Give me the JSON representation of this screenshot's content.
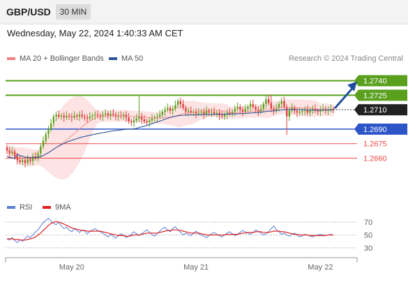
{
  "header": {
    "symbol": "GBP/USD",
    "timeframe": "30 MIN"
  },
  "timestamp": "Wednesday, May 22, 2024 1:40:33 AM CET",
  "legend": {
    "ma20": {
      "label": "MA 20 + Bollinger Bands",
      "color": "#f08080"
    },
    "ma50": {
      "label": "MA 50",
      "color": "#2b5797"
    },
    "rsi": {
      "label": "RSI",
      "color": "#5b7fd6"
    },
    "ma9": {
      "label": "9MA",
      "color": "#e02020"
    }
  },
  "credit": "Research © 2024 Trading Central",
  "chart_data": [
    {
      "type": "candlestick",
      "ylim": [
        1.262,
        1.2757
      ],
      "current_price": "1.2710",
      "levels": [
        {
          "label": "1.2740",
          "value": 1.274,
          "kind": "resistance",
          "color": "#5aa01e"
        },
        {
          "label": "1.2725",
          "value": 1.2725,
          "kind": "resistance",
          "color": "#5aa01e"
        },
        {
          "label": "1.2690",
          "value": 1.269,
          "kind": "pivot",
          "color": "#2d55c8"
        },
        {
          "label": "1.2675",
          "value": 1.2675,
          "kind": "support",
          "color": "#f04848"
        },
        {
          "label": "1.2660",
          "value": 1.266,
          "kind": "support",
          "color": "#f04848"
        }
      ],
      "forecast": "up",
      "bull_color": "#5aa01e",
      "bear_color": "#e23a3a",
      "x_labels": [
        "May 20",
        "May 21",
        "May 22"
      ],
      "x_label_index": [
        25,
        73,
        121
      ],
      "closes": [
        1.2668,
        1.2665,
        1.2667,
        1.2662,
        1.2658,
        1.2656,
        1.2658,
        1.2655,
        1.2659,
        1.2657,
        1.2662,
        1.266,
        1.2665,
        1.2672,
        1.2678,
        1.2685,
        1.269,
        1.2696,
        1.2703,
        1.2705,
        1.2703,
        1.2704,
        1.2702,
        1.2704,
        1.2703,
        1.2702,
        1.2704,
        1.2703,
        1.2705,
        1.2703,
        1.2702,
        1.2701,
        1.2703,
        1.2704,
        1.2705,
        1.2704,
        1.2703,
        1.2705,
        1.2706,
        1.2704,
        1.2706,
        1.2705,
        1.2703,
        1.2704,
        1.2703,
        1.2705,
        1.2702,
        1.2698,
        1.2697,
        1.2699,
        1.2701,
        1.2703,
        1.27,
        1.2698,
        1.2697,
        1.2699,
        1.2701,
        1.2702,
        1.2703,
        1.2705,
        1.2708,
        1.271,
        1.2712,
        1.2709,
        1.2711,
        1.2715,
        1.2719,
        1.2716,
        1.2712,
        1.2708,
        1.2709,
        1.2707,
        1.2708,
        1.2706,
        1.2707,
        1.2708,
        1.2705,
        1.2709,
        1.2707,
        1.2708,
        1.2706,
        1.2707,
        1.2704,
        1.2703,
        1.2705,
        1.2707,
        1.2706,
        1.2708,
        1.2711,
        1.2713,
        1.271,
        1.2708,
        1.2711,
        1.2713,
        1.2716,
        1.2713,
        1.271,
        1.2708,
        1.2711,
        1.2716,
        1.2721,
        1.2717,
        1.2711,
        1.2709,
        1.2712,
        1.2716,
        1.2719,
        1.2713,
        1.2703,
        1.2709,
        1.2712,
        1.2709,
        1.2707,
        1.2708,
        1.2709,
        1.271,
        1.2707,
        1.271,
        1.2711,
        1.2709,
        1.2708,
        1.271,
        1.2711,
        1.2709,
        1.271,
        1.2711,
        1.271
      ]
    },
    {
      "type": "line",
      "title": "RSI",
      "ylim": [
        20,
        80
      ],
      "y_ticks": [
        "70",
        "50",
        "30"
      ],
      "y_tick_values": [
        70,
        50,
        30
      ],
      "series": [
        {
          "name": "RSI",
          "values": [
            44,
            42,
            46,
            41,
            38,
            43,
            40,
            45,
            48,
            46,
            50,
            55,
            58,
            64,
            69,
            73,
            76,
            72,
            68,
            66,
            70,
            64,
            60,
            62,
            58,
            55,
            60,
            57,
            54,
            58,
            56,
            52,
            55,
            58,
            60,
            57,
            55,
            53,
            50,
            47,
            51,
            48,
            45,
            49,
            52,
            50,
            46,
            48,
            51,
            55,
            52,
            49,
            52,
            55,
            58,
            54,
            51,
            48,
            52,
            56,
            60,
            62,
            58,
            55,
            60,
            63,
            58,
            54,
            50,
            53,
            51,
            49,
            53,
            56,
            52,
            50,
            48,
            46,
            49,
            52,
            54,
            51,
            49,
            47,
            50,
            53,
            55,
            52,
            49,
            51,
            54,
            57,
            55,
            53,
            51,
            54,
            58,
            56,
            53,
            50,
            52,
            55,
            60,
            64,
            58,
            55,
            51,
            53,
            50,
            48,
            51,
            53,
            50,
            47,
            49,
            51,
            50,
            48,
            47,
            49,
            50,
            51,
            50,
            49,
            50,
            51,
            50
          ]
        },
        {
          "name": "9MA",
          "values": [
            44,
            44,
            44,
            43,
            43,
            42,
            42,
            42,
            43,
            44,
            45,
            47,
            50,
            53,
            57,
            61,
            65,
            68,
            70,
            71,
            70,
            69,
            67,
            65,
            63,
            61,
            60,
            59,
            58,
            57,
            57,
            56,
            56,
            56,
            56,
            56,
            56,
            55,
            54,
            53,
            52,
            51,
            50,
            49,
            49,
            49,
            48,
            48,
            49,
            50,
            50,
            50,
            51,
            52,
            53,
            53,
            53,
            53,
            53,
            54,
            55,
            56,
            57,
            57,
            58,
            58,
            58,
            57,
            56,
            55,
            54,
            53,
            53,
            53,
            53,
            52,
            51,
            50,
            50,
            50,
            50,
            50,
            50,
            50,
            50,
            51,
            51,
            51,
            51,
            51,
            52,
            53,
            53,
            54,
            54,
            54,
            55,
            55,
            55,
            54,
            54,
            54,
            55,
            56,
            56,
            56,
            55,
            55,
            54,
            53,
            52,
            51,
            51,
            50,
            50,
            50,
            50,
            49,
            49,
            49,
            49,
            49,
            49,
            49,
            50,
            50,
            50
          ]
        }
      ]
    }
  ]
}
